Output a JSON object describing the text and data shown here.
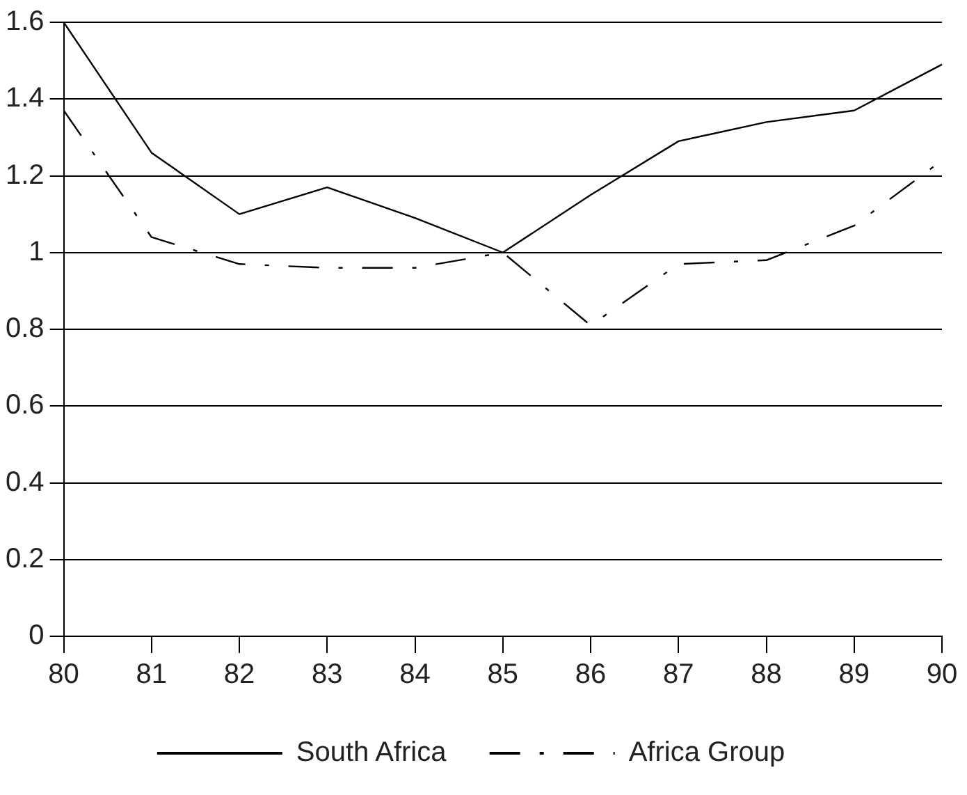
{
  "chart_data": {
    "type": "line",
    "categories": [
      "80",
      "81",
      "82",
      "83",
      "84",
      "85",
      "86",
      "87",
      "88",
      "89",
      "90"
    ],
    "series": [
      {
        "name": "South Africa",
        "color": "#000000",
        "line_style": "solid",
        "values": [
          1.6,
          1.26,
          1.1,
          1.17,
          1.09,
          1.0,
          1.15,
          1.29,
          1.34,
          1.37,
          1.49
        ]
      },
      {
        "name": "Africa Group",
        "color": "#000000",
        "line_style": "dashed",
        "values": [
          1.37,
          1.04,
          0.97,
          0.96,
          0.96,
          1.0,
          0.81,
          0.97,
          0.98,
          1.07,
          1.24
        ]
      }
    ],
    "ylim": [
      0,
      1.6
    ],
    "yticks": [
      0,
      0.2,
      0.4,
      0.6,
      0.8,
      1,
      1.2,
      1.4,
      1.6
    ],
    "grid": "y",
    "legend": "bottom",
    "marker": "none"
  }
}
